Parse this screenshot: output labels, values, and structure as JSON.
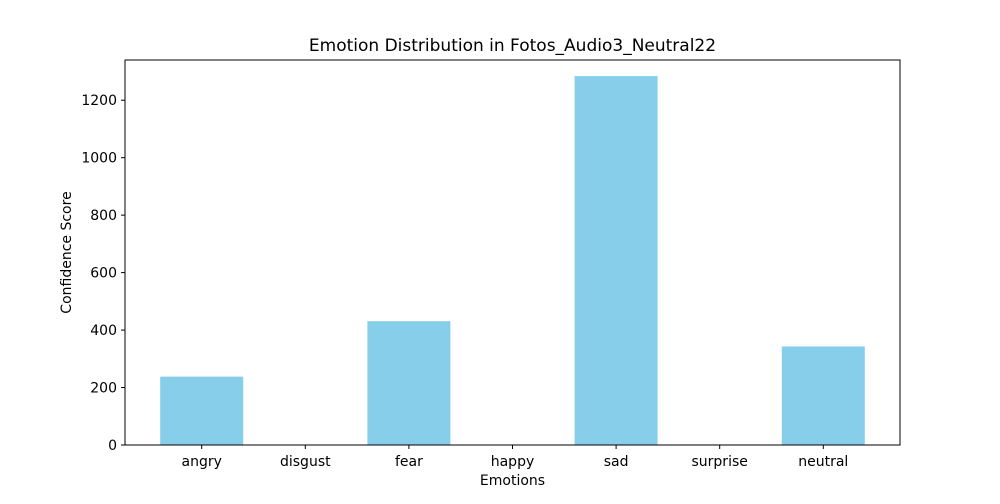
{
  "chart_data": {
    "type": "bar",
    "title": "Emotion Distribution in Fotos_Audio3_Neutral22",
    "xlabel": "Emotions",
    "ylabel": "Confidence Score",
    "categories": [
      "angry",
      "disgust",
      "fear",
      "happy",
      "sad",
      "surprise",
      "neutral"
    ],
    "values": [
      238,
      0,
      431,
      0,
      1284,
      2,
      343
    ],
    "ylim": [
      0,
      1340
    ],
    "yticks": [
      0,
      200,
      400,
      600,
      800,
      1000,
      1200
    ],
    "grid": false,
    "legend": "none",
    "bar_color": "#87ceeb"
  }
}
